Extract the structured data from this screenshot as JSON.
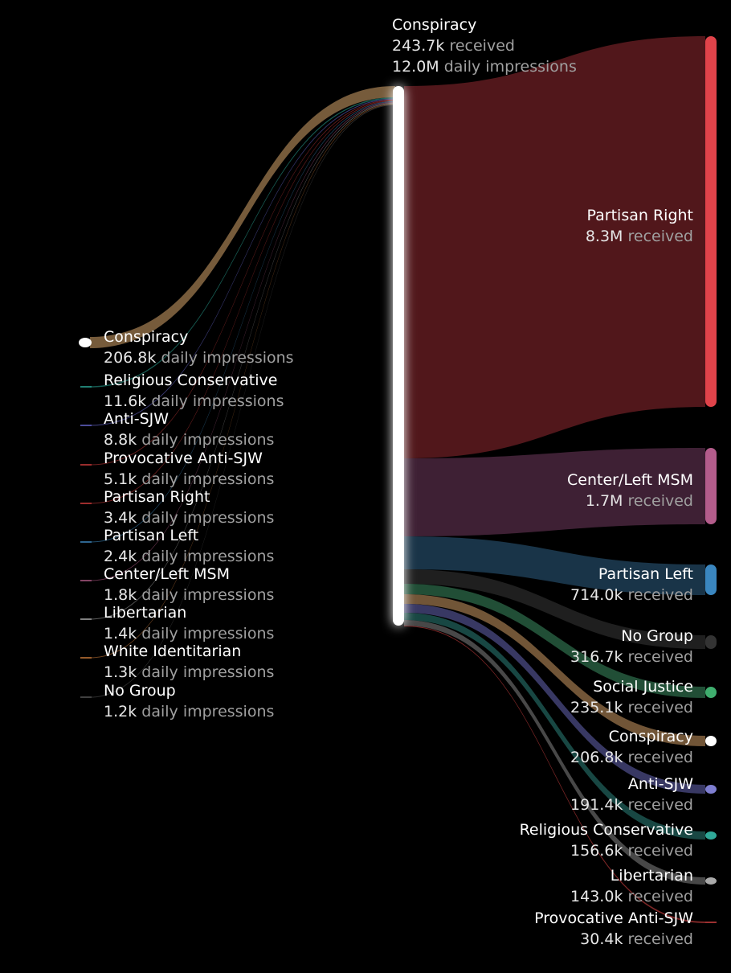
{
  "center": {
    "name": "Conspiracy",
    "received_value": "243.7k",
    "received_label": "received",
    "impressions_value": "12.0M",
    "impressions_label": "daily impressions",
    "color": "#ffffff"
  },
  "sources": [
    {
      "name": "Conspiracy",
      "value": "206.8k",
      "label": "daily impressions",
      "color": "#8b6b45",
      "dot": "#ffffff"
    },
    {
      "name": "Religious Conservative",
      "value": "11.6k",
      "label": "daily impressions",
      "color": "#2aa898"
    },
    {
      "name": "Anti-SJW",
      "value": "8.8k",
      "label": "daily impressions",
      "color": "#6666cc"
    },
    {
      "name": "Provocative Anti-SJW",
      "value": "5.1k",
      "label": "daily impressions",
      "color": "#cc3a3a"
    },
    {
      "name": "Partisan Right",
      "value": "3.4k",
      "label": "daily impressions",
      "color": "#d23c3c"
    },
    {
      "name": "Partisan Left",
      "value": "2.4k",
      "label": "daily impressions",
      "color": "#3d88c0"
    },
    {
      "name": "Center/Left MSM",
      "value": "1.8k",
      "label": "daily impressions",
      "color": "#b05a85"
    },
    {
      "name": "Libertarian",
      "value": "1.4k",
      "label": "daily impressions",
      "color": "#aaaaaa"
    },
    {
      "name": "White Identitarian",
      "value": "1.3k",
      "label": "daily impressions",
      "color": "#c87838"
    },
    {
      "name": "No Group",
      "value": "1.2k",
      "label": "daily impressions",
      "color": "#555555"
    }
  ],
  "targets": [
    {
      "name": "Partisan Right",
      "value": "8.3M",
      "label": "received",
      "color": "#5a1a1e",
      "node": "#e0434a"
    },
    {
      "name": "Center/Left MSM",
      "value": "1.7M",
      "label": "received",
      "color": "#45243a",
      "node": "#b35c8b"
    },
    {
      "name": "Partisan Left",
      "value": "714.0k",
      "label": "received",
      "color": "#1c3a50",
      "node": "#3a86bf"
    },
    {
      "name": "No Group",
      "value": "316.7k",
      "label": "received",
      "color": "#222222",
      "node": "#333333"
    },
    {
      "name": "Social Justice",
      "value": "235.1k",
      "label": "received",
      "color": "#25573c",
      "node": "#3fae6e"
    },
    {
      "name": "Conspiracy",
      "value": "206.8k",
      "label": "received",
      "color": "#7d5e3d",
      "node": "#ffffff"
    },
    {
      "name": "Anti-SJW",
      "value": "191.4k",
      "label": "received",
      "color": "#3e3e6e",
      "node": "#7e7ed0"
    },
    {
      "name": "Religious Conservative",
      "value": "156.6k",
      "label": "received",
      "color": "#1b4f4a",
      "node": "#2fa898"
    },
    {
      "name": "Libertarian",
      "value": "143.0k",
      "label": "received",
      "color": "#505050",
      "node": "#aaaaaa"
    },
    {
      "name": "Provocative Anti-SJW",
      "value": "30.4k",
      "label": "received",
      "color": "#8a2a2a",
      "node": "#d04040"
    }
  ]
}
